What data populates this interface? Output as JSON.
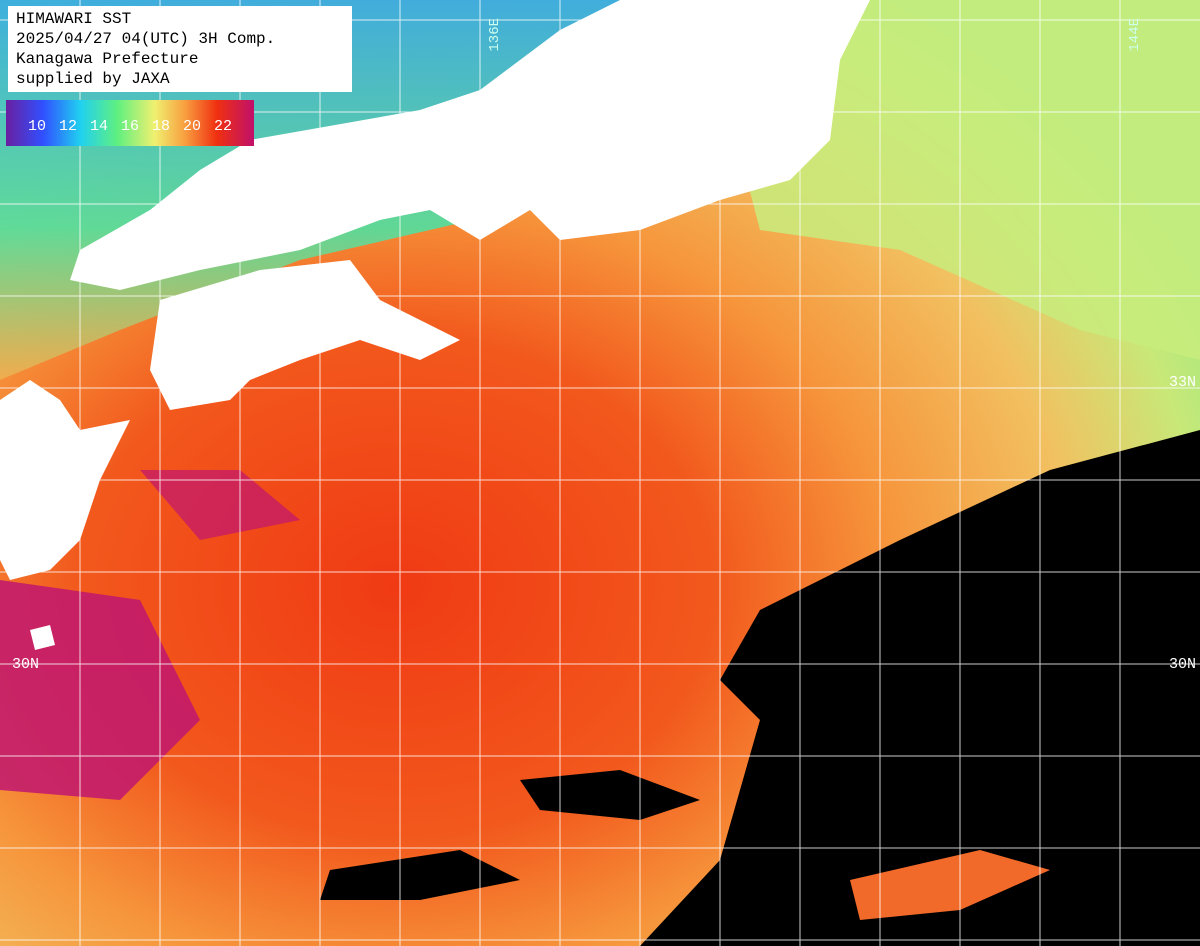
{
  "header": {
    "lines": [
      "HIMAWARI SST",
      "2025/04/27 04(UTC) 3H Comp.",
      "Kanagawa Prefecture",
      "supplied by JAXA"
    ]
  },
  "colorbar": {
    "labels": [
      10,
      12,
      14,
      16,
      18,
      20,
      22
    ]
  },
  "grid_labels": {
    "lon": [
      "136E",
      "144E"
    ],
    "lat_right": [
      "33N",
      "30N"
    ],
    "lat_left": [
      "30N"
    ]
  }
}
